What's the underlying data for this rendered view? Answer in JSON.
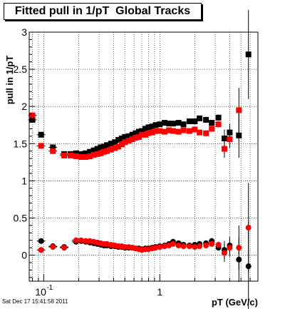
{
  "chart_data": {
    "type": "scatter",
    "title": "Fitted pull in 1/pT  Global Tracks",
    "xlabel": "pT (GeV/c)",
    "ylabel": "pull in 1/pT",
    "xscale": "log",
    "xlim": [
      0.075,
      7.0
    ],
    "ylim": [
      -0.35,
      3.0
    ],
    "grid": true,
    "x_tick_labels": [
      "10",
      "-1",
      "1"
    ],
    "y_tick_labels": [
      "0",
      "0.5",
      "1",
      "1.5",
      "2",
      "2.5",
      "3"
    ],
    "series": [
      {
        "color": "#000000",
        "marker": "square",
        "points": [
          [
            0.08,
            1.82
          ],
          [
            0.095,
            1.62
          ],
          [
            0.12,
            1.45
          ],
          [
            0.15,
            1.36
          ],
          [
            0.17,
            1.36
          ],
          [
            0.19,
            1.37
          ],
          [
            0.21,
            1.36
          ],
          [
            0.23,
            1.37
          ],
          [
            0.25,
            1.39
          ],
          [
            0.27,
            1.41
          ],
          [
            0.29,
            1.43
          ],
          [
            0.31,
            1.45
          ],
          [
            0.33,
            1.46
          ],
          [
            0.35,
            1.48
          ],
          [
            0.38,
            1.5
          ],
          [
            0.41,
            1.52
          ],
          [
            0.44,
            1.55
          ],
          [
            0.47,
            1.57
          ],
          [
            0.5,
            1.59
          ],
          [
            0.54,
            1.6
          ],
          [
            0.58,
            1.62
          ],
          [
            0.62,
            1.64
          ],
          [
            0.66,
            1.66
          ],
          [
            0.7,
            1.67
          ],
          [
            0.75,
            1.7
          ],
          [
            0.8,
            1.72
          ],
          [
            0.86,
            1.73
          ],
          [
            0.92,
            1.75
          ],
          [
            1.0,
            1.76
          ],
          [
            1.1,
            1.78
          ],
          [
            1.2,
            1.77
          ],
          [
            1.3,
            1.77
          ],
          [
            1.45,
            1.78
          ],
          [
            1.6,
            1.76
          ],
          [
            1.8,
            1.8
          ],
          [
            2.0,
            1.8
          ],
          [
            2.2,
            1.84
          ],
          [
            2.5,
            1.82
          ],
          [
            2.8,
            1.78
          ],
          [
            3.2,
            1.85
          ],
          [
            3.6,
            1.57
          ],
          [
            4.0,
            1.65
          ],
          [
            4.8,
            1.61
          ],
          [
            5.8,
            2.7
          ]
        ]
      },
      {
        "color": "#ff0000",
        "marker": "square",
        "points": [
          [
            0.08,
            1.88
          ],
          [
            0.095,
            1.47
          ],
          [
            0.12,
            1.4
          ],
          [
            0.15,
            1.34
          ],
          [
            0.17,
            1.34
          ],
          [
            0.19,
            1.33
          ],
          [
            0.21,
            1.32
          ],
          [
            0.23,
            1.32
          ],
          [
            0.25,
            1.33
          ],
          [
            0.27,
            1.35
          ],
          [
            0.29,
            1.36
          ],
          [
            0.31,
            1.37
          ],
          [
            0.33,
            1.39
          ],
          [
            0.35,
            1.4
          ],
          [
            0.38,
            1.42
          ],
          [
            0.41,
            1.44
          ],
          [
            0.44,
            1.46
          ],
          [
            0.47,
            1.49
          ],
          [
            0.5,
            1.52
          ],
          [
            0.54,
            1.54
          ],
          [
            0.58,
            1.56
          ],
          [
            0.62,
            1.58
          ],
          [
            0.66,
            1.59
          ],
          [
            0.7,
            1.62
          ],
          [
            0.75,
            1.62
          ],
          [
            0.8,
            1.64
          ],
          [
            0.86,
            1.65
          ],
          [
            0.92,
            1.67
          ],
          [
            1.0,
            1.67
          ],
          [
            1.1,
            1.66
          ],
          [
            1.2,
            1.68
          ],
          [
            1.3,
            1.67
          ],
          [
            1.45,
            1.66
          ],
          [
            1.6,
            1.68
          ],
          [
            1.8,
            1.67
          ],
          [
            2.0,
            1.69
          ],
          [
            2.2,
            1.65
          ],
          [
            2.5,
            1.64
          ],
          [
            2.8,
            1.7
          ],
          [
            3.2,
            1.76
          ],
          [
            3.6,
            1.43
          ],
          [
            4.0,
            1.56
          ],
          [
            4.8,
            1.95
          ]
        ]
      },
      {
        "color": "#000000",
        "marker": "circle",
        "points": [
          [
            0.095,
            0.19
          ],
          [
            0.12,
            0.12
          ],
          [
            0.15,
            0.11
          ],
          [
            0.19,
            0.18
          ],
          [
            0.21,
            0.19
          ],
          [
            0.23,
            0.18
          ],
          [
            0.25,
            0.17
          ],
          [
            0.27,
            0.16
          ],
          [
            0.29,
            0.15
          ],
          [
            0.31,
            0.14
          ],
          [
            0.33,
            0.13
          ],
          [
            0.35,
            0.13
          ],
          [
            0.38,
            0.12
          ],
          [
            0.41,
            0.12
          ],
          [
            0.44,
            0.11
          ],
          [
            0.47,
            0.11
          ],
          [
            0.5,
            0.1
          ],
          [
            0.54,
            0.1
          ],
          [
            0.58,
            0.1
          ],
          [
            0.62,
            0.09
          ],
          [
            0.66,
            0.09
          ],
          [
            0.7,
            0.08
          ],
          [
            0.75,
            0.09
          ],
          [
            0.8,
            0.09
          ],
          [
            0.86,
            0.1
          ],
          [
            0.92,
            0.11
          ],
          [
            1.0,
            0.12
          ],
          [
            1.1,
            0.13
          ],
          [
            1.2,
            0.15
          ],
          [
            1.3,
            0.18
          ],
          [
            1.45,
            0.16
          ],
          [
            1.6,
            0.14
          ],
          [
            1.8,
            0.13
          ],
          [
            2.0,
            0.14
          ],
          [
            2.2,
            0.15
          ],
          [
            2.5,
            0.16
          ],
          [
            2.8,
            0.19
          ],
          [
            3.2,
            0.1
          ],
          [
            3.6,
            0.07
          ],
          [
            4.0,
            0.13
          ],
          [
            4.8,
            -0.06
          ],
          [
            5.8,
            -0.15
          ]
        ]
      },
      {
        "color": "#ff0000",
        "marker": "circle",
        "points": [
          [
            0.095,
            0.07
          ],
          [
            0.12,
            0.11
          ],
          [
            0.15,
            0.1
          ],
          [
            0.19,
            0.2
          ],
          [
            0.21,
            0.2
          ],
          [
            0.23,
            0.19
          ],
          [
            0.25,
            0.19
          ],
          [
            0.27,
            0.18
          ],
          [
            0.29,
            0.17
          ],
          [
            0.31,
            0.16
          ],
          [
            0.33,
            0.15
          ],
          [
            0.35,
            0.15
          ],
          [
            0.38,
            0.14
          ],
          [
            0.41,
            0.13
          ],
          [
            0.44,
            0.12
          ],
          [
            0.47,
            0.12
          ],
          [
            0.5,
            0.11
          ],
          [
            0.54,
            0.11
          ],
          [
            0.58,
            0.1
          ],
          [
            0.62,
            0.09
          ],
          [
            0.66,
            0.08
          ],
          [
            0.7,
            0.07
          ],
          [
            0.75,
            0.08
          ],
          [
            0.8,
            0.08
          ],
          [
            0.86,
            0.09
          ],
          [
            0.92,
            0.1
          ],
          [
            1.0,
            0.11
          ],
          [
            1.1,
            0.12
          ],
          [
            1.2,
            0.13
          ],
          [
            1.3,
            0.15
          ],
          [
            1.45,
            0.13
          ],
          [
            1.6,
            0.12
          ],
          [
            1.8,
            0.12
          ],
          [
            2.0,
            0.11
          ],
          [
            2.2,
            0.12
          ],
          [
            2.5,
            0.13
          ],
          [
            2.8,
            0.15
          ],
          [
            3.2,
            0.14
          ],
          [
            3.6,
            0.03
          ],
          [
            4.0,
            0.1
          ],
          [
            4.8,
            0.1
          ],
          [
            5.8,
            0.37
          ]
        ]
      }
    ]
  },
  "footer": {
    "date": "Sat Dec 17 15:41:58 2011"
  }
}
